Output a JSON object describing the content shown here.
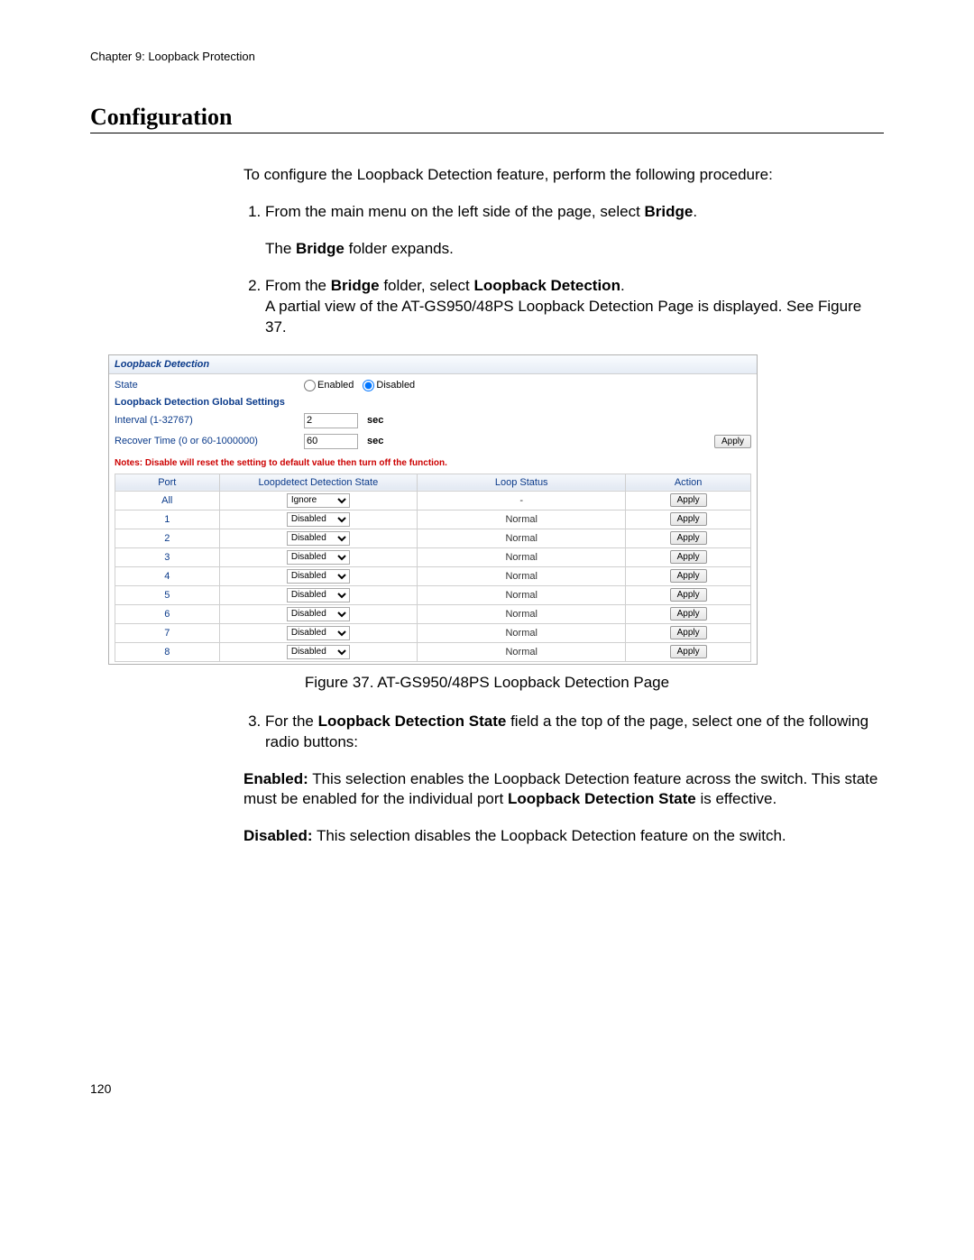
{
  "doc": {
    "chapter_header": "Chapter 9: Loopback Protection",
    "section_title": "Configuration",
    "intro": "To configure the Loopback Detection feature, perform the following procedure:",
    "step1_a": "From the main menu on the left side of the page, select ",
    "step1_bold": "Bridge",
    "step1_c": ".",
    "step1_result_a": "The ",
    "step1_result_bold": "Bridge",
    "step1_result_c": " folder expands.",
    "step2_a": "From the ",
    "step2_bold1": "Bridge",
    "step2_b": " folder, select ",
    "step2_bold2": "Loopback Detection",
    "step2_c": ".",
    "step2_line2": "A partial view of the AT-GS950/48PS Loopback Detection Page is displayed. See Figure 37.",
    "figure_caption": "Figure 37. AT-GS950/48PS Loopback Detection Page",
    "step3_a": "For the ",
    "step3_bold": "Loopback Detection State",
    "step3_b": " field a the top of the page, select one of the following radio buttons:",
    "enabled_label": "Enabled:",
    "enabled_text_a": " This selection enables the Loopback Detection feature across the switch. This state must be enabled for the individual port ",
    "enabled_bold": "Loopback Detection State",
    "enabled_text_b": " is effective.",
    "disabled_label": "Disabled:",
    "disabled_text": " This selection disables the Loopback Detection feature on the switch.",
    "page_number": "120"
  },
  "ui": {
    "panel_title": "Loopback Detection",
    "state_label": "State",
    "radio_enabled": "Enabled",
    "radio_disabled": "Disabled",
    "state_selected": "disabled",
    "global_settings_header": "Loopback Detection Global Settings",
    "interval_label": "Interval (1-32767)",
    "interval_value": "2",
    "recover_label": "Recover Time (0 or 60-1000000)",
    "recover_value": "60",
    "unit": "sec",
    "apply_label": "Apply",
    "note": "Notes: Disable will reset the setting to default value then turn off the function.",
    "columns": {
      "port": "Port",
      "state": "Loopdetect Detection State",
      "status": "Loop Status",
      "action": "Action"
    },
    "rows": [
      {
        "port": "All",
        "state": "Ignore",
        "status": "-",
        "action": "Apply"
      },
      {
        "port": "1",
        "state": "Disabled",
        "status": "Normal",
        "action": "Apply"
      },
      {
        "port": "2",
        "state": "Disabled",
        "status": "Normal",
        "action": "Apply"
      },
      {
        "port": "3",
        "state": "Disabled",
        "status": "Normal",
        "action": "Apply"
      },
      {
        "port": "4",
        "state": "Disabled",
        "status": "Normal",
        "action": "Apply"
      },
      {
        "port": "5",
        "state": "Disabled",
        "status": "Normal",
        "action": "Apply"
      },
      {
        "port": "6",
        "state": "Disabled",
        "status": "Normal",
        "action": "Apply"
      },
      {
        "port": "7",
        "state": "Disabled",
        "status": "Normal",
        "action": "Apply"
      },
      {
        "port": "8",
        "state": "Disabled",
        "status": "Normal",
        "action": "Apply"
      }
    ]
  }
}
